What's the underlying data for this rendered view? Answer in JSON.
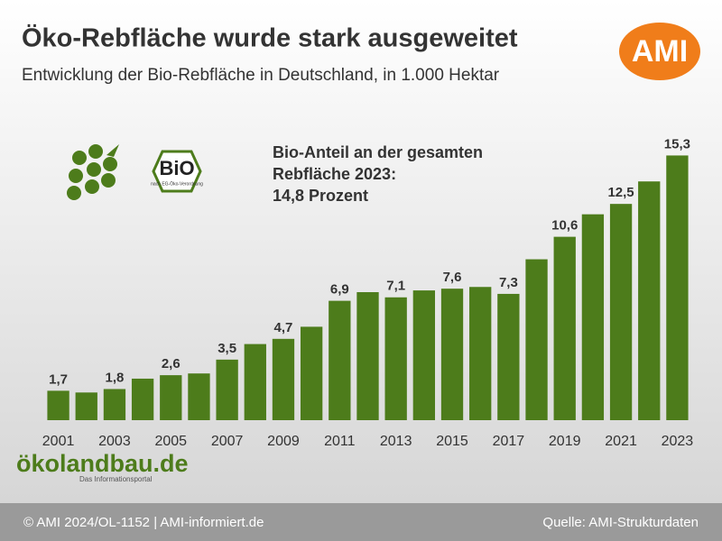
{
  "chart_data": {
    "type": "bar",
    "title": "Öko-Rebfläche wurde stark ausgeweitet",
    "subtitle": "Entwicklung der Bio-Rebfläche in Deutschland, in 1.000 Hektar",
    "annotation": [
      "Bio-Anteil an der gesamten",
      "Rebfläche 2023:",
      "14,8 Prozent"
    ],
    "categories": [
      "2001",
      null,
      "2003",
      null,
      "2005",
      null,
      "2007",
      null,
      "2009",
      null,
      "2011",
      null,
      "2013",
      null,
      "2015",
      null,
      "2017",
      null,
      "2019",
      null,
      "2021",
      null,
      "2023"
    ],
    "values": [
      1.7,
      1.6,
      1.8,
      2.4,
      2.6,
      2.7,
      3.5,
      4.4,
      4.7,
      5.4,
      6.9,
      7.4,
      7.1,
      7.5,
      7.6,
      7.7,
      7.3,
      9.3,
      10.6,
      11.9,
      12.5,
      13.8,
      15.3
    ],
    "value_labels": [
      "1,7",
      null,
      "1,8",
      null,
      "2,6",
      null,
      "3,5",
      null,
      "4,7",
      null,
      "6,9",
      null,
      "7,1",
      null,
      "7,6",
      null,
      "7,3",
      null,
      "10,6",
      null,
      "12,5",
      null,
      "15,3"
    ],
    "color": "#4d7c1b",
    "ylim": [
      0,
      16
    ]
  },
  "logos": {
    "ami": "AMI",
    "bio": "BiO",
    "bio_note": "nach EG-Öko-Verordnung",
    "oekolandbau": "ökolandbau.de",
    "oekolandbau_sub": "Das Informationsportal"
  },
  "footer": {
    "left": "© AMI 2024/OL-1152 | AMI-informiert.de",
    "right": "Quelle: AMI-Strukturdaten"
  }
}
